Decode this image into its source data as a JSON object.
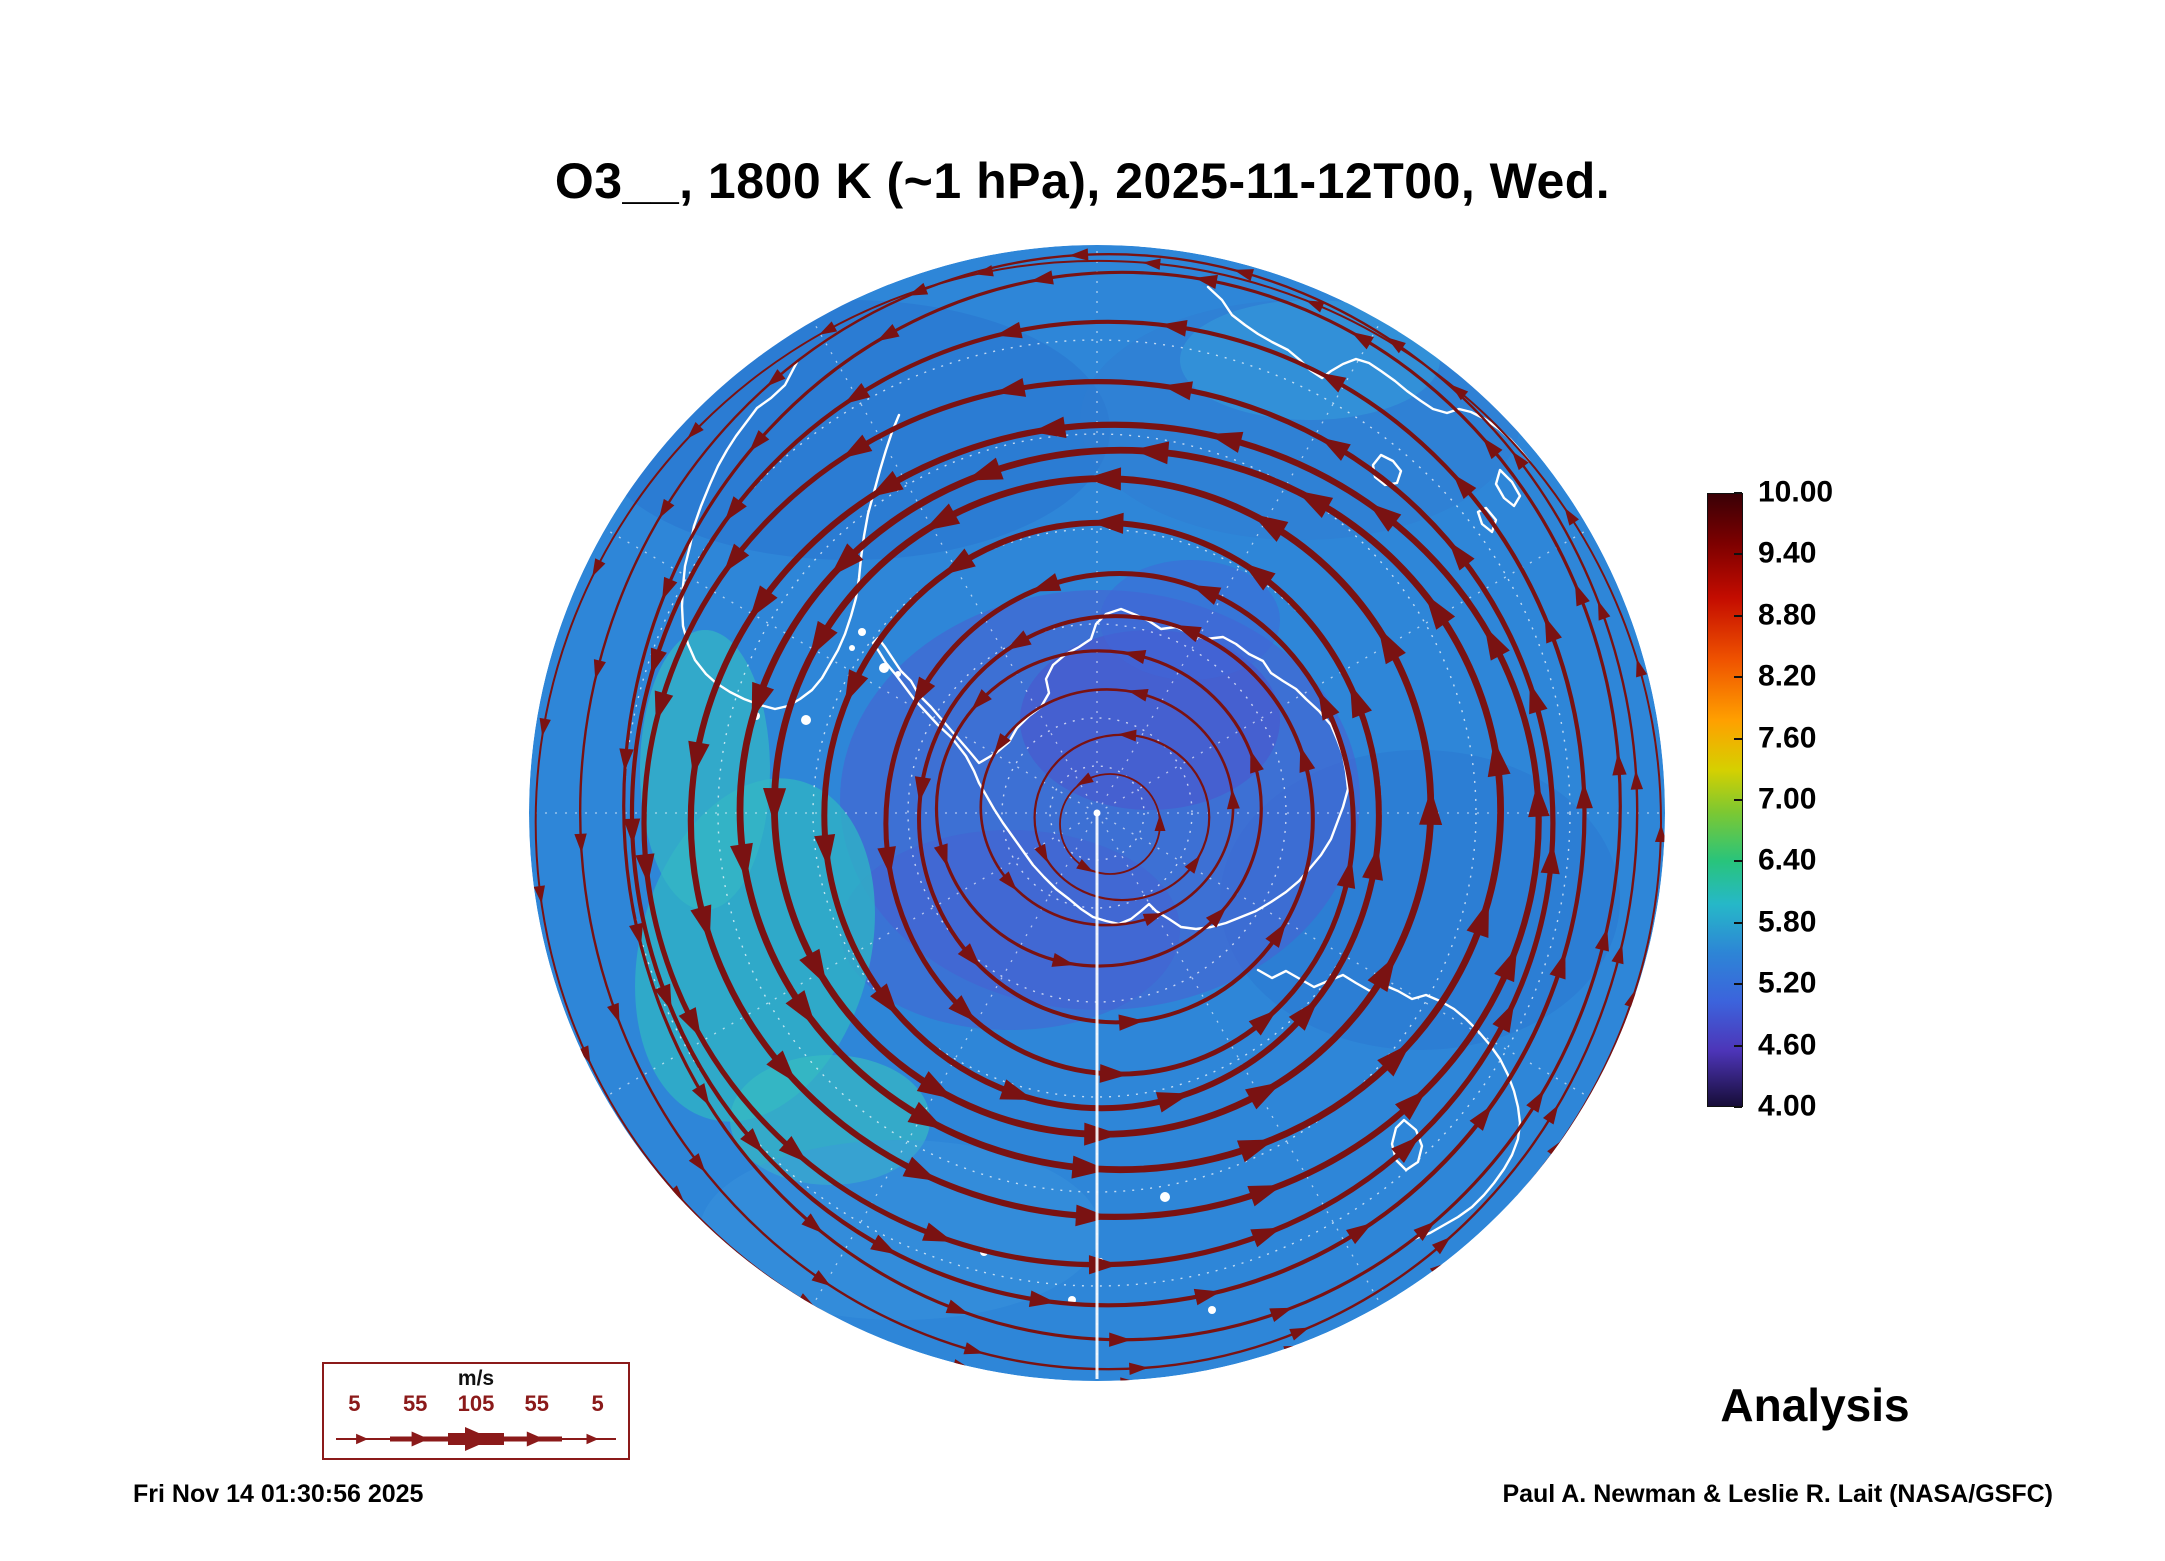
{
  "title": "O3__, 1800 K (~1 hPa), 2025-11-12T00, Wed.",
  "analysis_label": "Analysis",
  "footer": {
    "timestamp": "Fri Nov 14 01:30:56 2025",
    "credit": "Paul A. Newman & Leslie R. Lait (NASA/GSFC)"
  },
  "colorbar": {
    "tick_labels": [
      "10.00",
      "9.40",
      "8.80",
      "8.20",
      "7.60",
      "7.00",
      "6.40",
      "5.80",
      "5.20",
      "4.60",
      "4.00"
    ]
  },
  "wind_legend": {
    "unit": "m/s",
    "tick_labels": [
      "5",
      "55",
      "105",
      "55",
      "5"
    ],
    "color": "#8b1a1a"
  },
  "map": {
    "streamline_color": "#7a1212",
    "coastline_color": "#ffffff",
    "ocean_base_color": "#2e86d8"
  },
  "chart_data": {
    "type": "heatmap",
    "title": "O3__, 1800 K (~1 hPa), 2025-11-12T00, Wed.",
    "description": "South polar stereographic map of O3 on the 1800 K (~1 hPa) surface with dark-red wind streamlines circling the Antarctic vortex; field values over the polar cap mostly 4.6-6.4 (blue/violet shades) with cyan patches near 6.0-6.5 at mid-latitudes; white coastlines and dashed white graticule",
    "colorbar": {
      "ticks": [
        10.0,
        9.4,
        8.8,
        8.2,
        7.6,
        7.0,
        6.4,
        5.8,
        5.2,
        4.6,
        4.0
      ],
      "range": [
        4.0,
        10.0
      ],
      "orientation": "vertical",
      "position": "right"
    },
    "wind_scale_ms": [
      5,
      55,
      105,
      55,
      5
    ],
    "annotations": [
      "Analysis",
      "Fri Nov 14 01:30:56 2025",
      "Paul A. Newman & Leslie R. Lait (NASA/GSFC)"
    ]
  }
}
